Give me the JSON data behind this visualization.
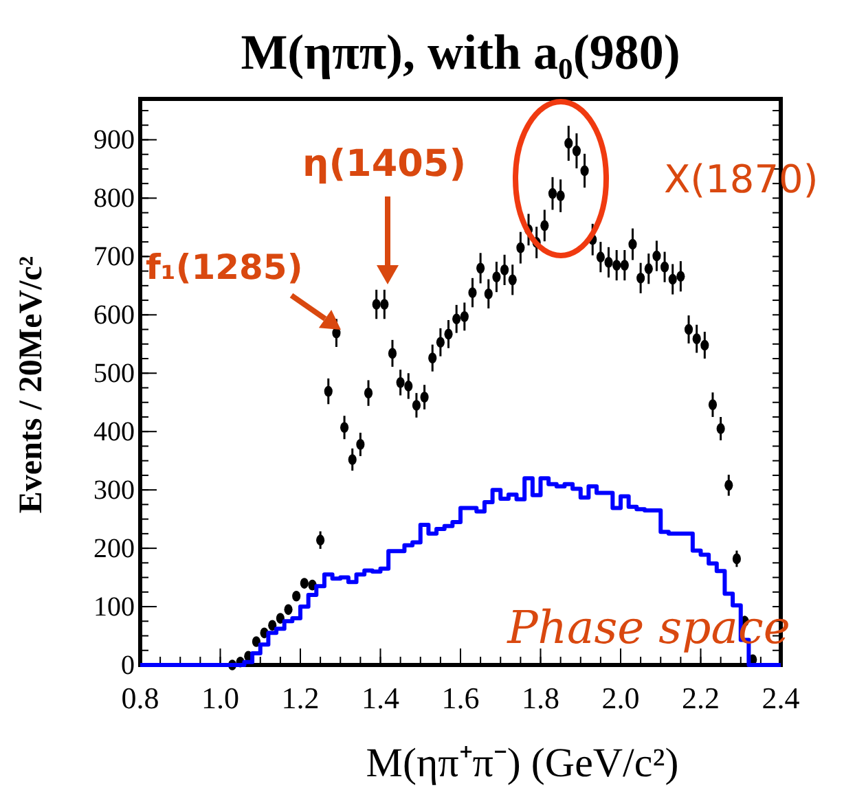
{
  "chart_data": {
    "type": "scatter",
    "title": "M(ηππ), with a₀(980)",
    "xlabel": "M(ηπ⁺π⁻) (GeV/c²)",
    "ylabel": "Events / 20MeV/c²",
    "xlim": [
      0.8,
      2.4
    ],
    "ylim": [
      0,
      970
    ],
    "xticks": [
      0.8,
      {
        "value": 1,
        "label": "1.0"
      },
      1.2,
      1.4,
      1.6,
      1.8,
      {
        "value": 2,
        "label": "2.0"
      },
      2.2,
      2.4
    ],
    "yticks": [
      0,
      100,
      200,
      300,
      400,
      500,
      600,
      700,
      800,
      900
    ],
    "grid": false,
    "annotations": [
      "f₁(1285)",
      "η(1405)",
      "X(1870)"
    ],
    "series": [
      {
        "marker": "circle",
        "color": "#000000",
        "x": [
          1.03,
          1.05,
          1.07,
          1.09,
          1.11,
          1.13,
          1.15,
          1.17,
          1.19,
          1.21,
          1.23,
          1.25,
          1.27,
          1.29,
          1.31,
          1.33,
          1.35,
          1.37,
          1.39,
          1.41,
          1.43,
          1.45,
          1.47,
          1.49,
          1.51,
          1.53,
          1.55,
          1.57,
          1.59,
          1.61,
          1.63,
          1.65,
          1.67,
          1.69,
          1.71,
          1.73,
          1.75,
          1.77,
          1.79,
          1.81,
          1.83,
          1.85,
          1.87,
          1.89,
          1.91,
          1.93,
          1.95,
          1.97,
          1.99,
          2.01,
          2.03,
          2.05,
          2.07,
          2.09,
          2.11,
          2.13,
          2.15,
          2.17,
          2.19,
          2.21,
          2.23,
          2.25,
          2.27,
          2.29,
          2.31,
          2.33
        ],
        "values": [
          0,
          5,
          15,
          40,
          55,
          68,
          80,
          95,
          118,
          140,
          137,
          214,
          469,
          569,
          407,
          352,
          378,
          466,
          618,
          618,
          534,
          484,
          478,
          445,
          459,
          526,
          553,
          567,
          593,
          597,
          638,
          680,
          636,
          665,
          677,
          660,
          715,
          746,
          724,
          753,
          808,
          804,
          894,
          881,
          847,
          729,
          699,
          690,
          685,
          685,
          721,
          663,
          679,
          701,
          682,
          661,
          666,
          575,
          559,
          548,
          446,
          405,
          308,
          182,
          75,
          9
        ],
        "errors": [
          null,
          null,
          null,
          null,
          null,
          null,
          null,
          null,
          null,
          null,
          null,
          15,
          22,
          24,
          20,
          19,
          20,
          22,
          25,
          25,
          23,
          22,
          22,
          21,
          21,
          23,
          24,
          24,
          24,
          24,
          25,
          26,
          25,
          26,
          26,
          26,
          27,
          27,
          27,
          27,
          28,
          28,
          30,
          30,
          29,
          27,
          26,
          26,
          26,
          26,
          27,
          26,
          26,
          26,
          26,
          26,
          26,
          24,
          24,
          23,
          21,
          20,
          18,
          14,
          9,
          null
        ]
      },
      {
        "type": "step",
        "marker": "none",
        "name": "Phase space",
        "color": "#0000ff",
        "x": [
          0.8,
          0.82,
          0.84,
          0.86,
          0.88,
          0.9,
          0.92,
          0.94,
          0.96,
          0.98,
          1,
          1.02,
          1.04,
          1.06,
          1.08,
          1.1,
          1.12,
          1.14,
          1.16,
          1.18,
          1.2,
          1.22,
          1.24,
          1.26,
          1.28,
          1.3,
          1.32,
          1.34,
          1.36,
          1.38,
          1.4,
          1.42,
          1.44,
          1.46,
          1.48,
          1.5,
          1.52,
          1.54,
          1.56,
          1.58,
          1.6,
          1.62,
          1.64,
          1.66,
          1.68,
          1.7,
          1.72,
          1.74,
          1.76,
          1.78,
          1.8,
          1.82,
          1.84,
          1.86,
          1.88,
          1.9,
          1.92,
          1.94,
          1.96,
          1.98,
          2,
          2.02,
          2.04,
          2.06,
          2.08,
          2.1,
          2.12,
          2.14,
          2.16,
          2.18,
          2.2,
          2.22,
          2.24,
          2.26,
          2.28,
          2.3,
          2.32,
          2.34,
          2.36,
          2.38,
          2.4
        ],
        "values": [
          0,
          0,
          0,
          0,
          0,
          0,
          0,
          0,
          0,
          0,
          0,
          0,
          0,
          5,
          20,
          35,
          55,
          62,
          75,
          80,
          100,
          120,
          135,
          155,
          148,
          150,
          142,
          155,
          162,
          160,
          165,
          195,
          195,
          205,
          210,
          240,
          225,
          233,
          238,
          245,
          269,
          269,
          263,
          279,
          300,
          285,
          292,
          284,
          320,
          291,
          320,
          310,
          306,
          310,
          302,
          287,
          306,
          295,
          295,
          269,
          289,
          271,
          267,
          265,
          265,
          228,
          225,
          225,
          225,
          196,
          189,
          174,
          161,
          122,
          102,
          43,
          0,
          0,
          0,
          0,
          0
        ]
      }
    ]
  }
}
